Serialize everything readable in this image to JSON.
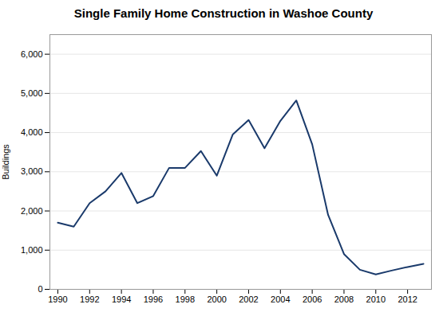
{
  "chart_data": {
    "type": "line",
    "title": "Single Family Home Construction in Washoe County",
    "ylabel": "Buildings",
    "x": [
      1990,
      1991,
      1992,
      1993,
      1994,
      1995,
      1996,
      1997,
      1998,
      1999,
      2000,
      2001,
      2002,
      2003,
      2004,
      2005,
      2006,
      2007,
      2008,
      2009,
      2010,
      2011,
      2012,
      2013
    ],
    "values": [
      1700,
      1600,
      2200,
      2500,
      2970,
      2200,
      2380,
      3100,
      3100,
      3530,
      2900,
      3950,
      4320,
      3600,
      4300,
      4820,
      3700,
      1900,
      900,
      500,
      380,
      480,
      570,
      650
    ],
    "color": "#1a3a6b",
    "xlim": [
      1989.5,
      2013.5
    ],
    "xticks": [
      1990,
      1992,
      1994,
      1996,
      1998,
      2000,
      2002,
      2004,
      2006,
      2008,
      2010,
      2012
    ],
    "ylim": [
      0,
      6500
    ],
    "yticks": [
      0,
      {
        "value": 1000,
        "label": "1,000"
      },
      {
        "value": 2000,
        "label": "2,000"
      },
      {
        "value": 3000,
        "label": "3,000"
      },
      {
        "value": 4000,
        "label": "4,000"
      },
      {
        "value": 5000,
        "label": "5,000"
      },
      {
        "value": 6000,
        "label": "6,000"
      }
    ],
    "grid": "y"
  }
}
